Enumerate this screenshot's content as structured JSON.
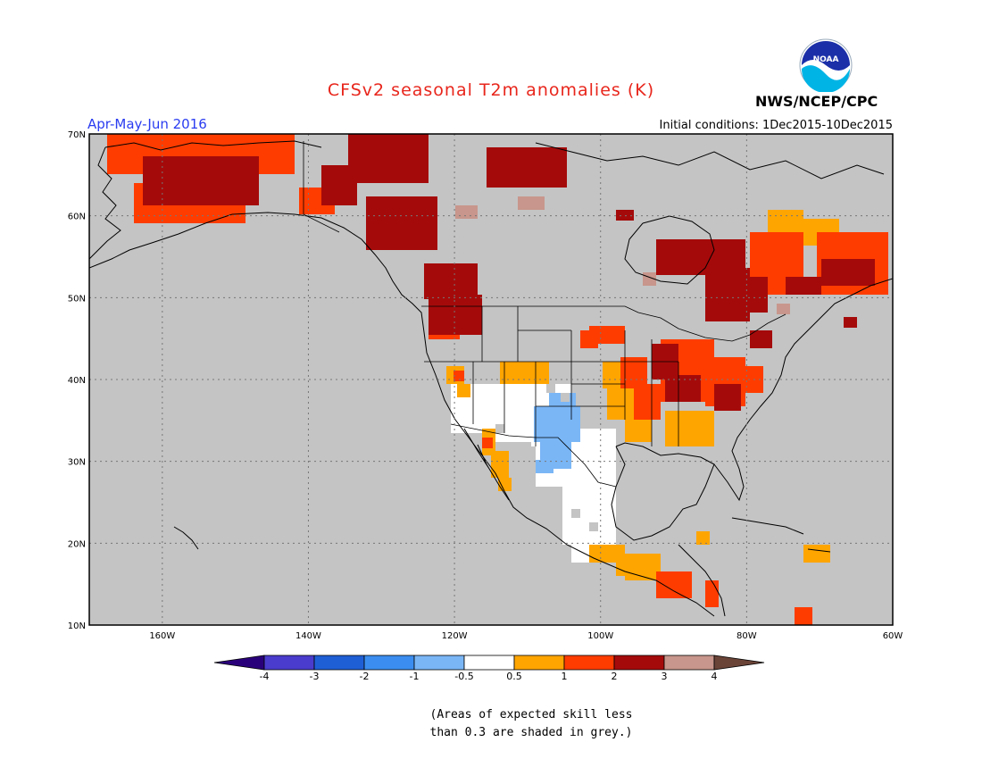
{
  "header": {
    "title": "CFSv2 seasonal T2m anomalies (K)",
    "season": "Apr-May-Jun 2016",
    "initial_conditions": "Initial conditions: 1Dec2015-10Dec2015",
    "agency": "NWS/NCEP/CPC",
    "logo_text": "NOAA"
  },
  "colors": {
    "title": "#e8261c",
    "season": "#2a3cf0",
    "ocean_grey": "#c4c4c4",
    "c_lt_neg4": "#2a007a",
    "c_neg4_neg3": "#4a3ccc",
    "c_neg3_neg2": "#1f5fd6",
    "c_neg2_neg1": "#3b8ef0",
    "c_neg1_neg05": "#7ab6f6",
    "c_neutral": "#ffffff",
    "c_05_1": "#ffa500",
    "c_1_2": "#ff3c00",
    "c_2_3": "#a50a0a",
    "c_3_4": "#c8968c",
    "c_gt4": "#6b4438"
  },
  "map": {
    "projection": "latitude-longitude",
    "lat_range": [
      10,
      70
    ],
    "lon_range": [
      -170,
      -60
    ],
    "lat_ticks": [
      "10N",
      "20N",
      "30N",
      "40N",
      "50N",
      "60N",
      "70N"
    ],
    "lon_ticks": [
      "160W",
      "140W",
      "120W",
      "100W",
      "80W",
      "60W"
    ],
    "grid": "dotted"
  },
  "colorbar": {
    "levels": [
      "-4",
      "-3",
      "-2",
      "-1",
      "-0.5",
      "0.5",
      "1",
      "2",
      "3",
      "4"
    ]
  },
  "footnote": {
    "line1": "(Areas of expected skill less",
    "line2": "than 0.3 are shaded in grey.)"
  }
}
